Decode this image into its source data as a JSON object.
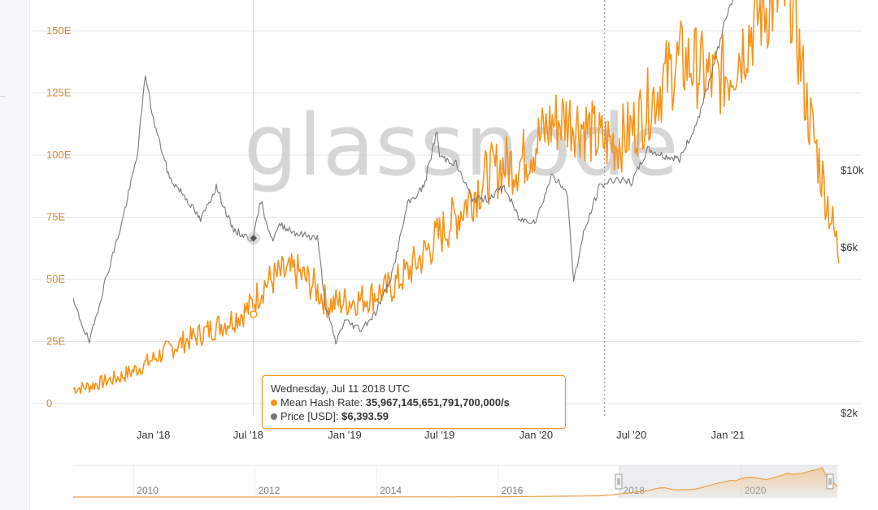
{
  "watermark": "glassnode",
  "colors": {
    "hash_rate": "#f7931a",
    "price": "#777777",
    "left_axis_text": "#d08a3a"
  },
  "chart_data": {
    "type": "line",
    "x_range": [
      "2017-08-01",
      "2021-08-01"
    ],
    "x_ticks": [
      {
        "date": "2018-01-01",
        "label": "Jan '18"
      },
      {
        "date": "2018-07-01",
        "label": "Jul '18"
      },
      {
        "date": "2019-01-01",
        "label": "Jan '19"
      },
      {
        "date": "2019-07-01",
        "label": "Jul '19"
      },
      {
        "date": "2020-01-01",
        "label": "Jan '20"
      },
      {
        "date": "2020-07-01",
        "label": "Jul '20"
      },
      {
        "date": "2021-01-01",
        "label": "Jan '21"
      }
    ],
    "y_left": {
      "label": "",
      "range": [
        0,
        165
      ],
      "ticks": [
        {
          "value": 0,
          "label": "0"
        },
        {
          "value": 25,
          "label": "25E"
        },
        {
          "value": 50,
          "label": "50E"
        },
        {
          "value": 75,
          "label": "75E"
        },
        {
          "value": 100,
          "label": "100E"
        },
        {
          "value": 125,
          "label": "125E"
        },
        {
          "value": 150,
          "label": "150E"
        }
      ]
    },
    "y_right": {
      "label": "",
      "scale": "log",
      "ticks": [
        {
          "value": 2000,
          "label": "$2k"
        },
        {
          "value": 6000,
          "label": "$6k"
        },
        {
          "value": 10000,
          "label": "$10k"
        }
      ]
    },
    "grid": true,
    "series": [
      {
        "name": "Mean Hash Rate",
        "axis": "left",
        "unit": "E/s",
        "points": [
          [
            "2017-08-01",
            6
          ],
          [
            "2017-09-01",
            7
          ],
          [
            "2017-10-01",
            9
          ],
          [
            "2017-11-01",
            11
          ],
          [
            "2017-12-01",
            14
          ],
          [
            "2018-01-01",
            18
          ],
          [
            "2018-02-01",
            22
          ],
          [
            "2018-03-01",
            25
          ],
          [
            "2018-04-01",
            28
          ],
          [
            "2018-05-01",
            31
          ],
          [
            "2018-06-01",
            34
          ],
          [
            "2018-07-01",
            38
          ],
          [
            "2018-08-01",
            48
          ],
          [
            "2018-09-01",
            52
          ],
          [
            "2018-10-01",
            53
          ],
          [
            "2018-11-01",
            48
          ],
          [
            "2018-12-01",
            40
          ],
          [
            "2019-01-01",
            41
          ],
          [
            "2019-02-01",
            42
          ],
          [
            "2019-03-01",
            44
          ],
          [
            "2019-04-01",
            47
          ],
          [
            "2019-05-01",
            53
          ],
          [
            "2019-06-01",
            60
          ],
          [
            "2019-07-01",
            68
          ],
          [
            "2019-08-01",
            75
          ],
          [
            "2019-09-01",
            84
          ],
          [
            "2019-10-01",
            92
          ],
          [
            "2019-11-01",
            96
          ],
          [
            "2019-12-01",
            97
          ],
          [
            "2020-01-01",
            105
          ],
          [
            "2020-02-01",
            113
          ],
          [
            "2020-03-01",
            115
          ],
          [
            "2020-04-01",
            112
          ],
          [
            "2020-05-01",
            106
          ],
          [
            "2020-06-01",
            105
          ],
          [
            "2020-07-01",
            110
          ],
          [
            "2020-08-01",
            120
          ],
          [
            "2020-09-01",
            130
          ],
          [
            "2020-10-01",
            138
          ],
          [
            "2020-11-01",
            136
          ],
          [
            "2020-12-01",
            130
          ],
          [
            "2021-01-01",
            133
          ],
          [
            "2021-02-01",
            145
          ],
          [
            "2021-03-01",
            157
          ],
          [
            "2021-04-01",
            163
          ],
          [
            "2021-05-01",
            165
          ],
          [
            "2021-06-01",
            120
          ],
          [
            "2021-07-01",
            90
          ],
          [
            "2021-08-01",
            60
          ]
        ]
      },
      {
        "name": "Price [USD]",
        "axis": "right",
        "unit": "USD",
        "points": [
          [
            "2017-08-01",
            4200
          ],
          [
            "2017-09-01",
            3200
          ],
          [
            "2017-10-01",
            4800
          ],
          [
            "2017-11-01",
            7000
          ],
          [
            "2017-12-01",
            11000
          ],
          [
            "2017-12-17",
            19000
          ],
          [
            "2018-01-01",
            14000
          ],
          [
            "2018-02-01",
            9500
          ],
          [
            "2018-03-01",
            8500
          ],
          [
            "2018-04-01",
            7200
          ],
          [
            "2018-05-01",
            9000
          ],
          [
            "2018-06-01",
            6800
          ],
          [
            "2018-07-01",
            6400
          ],
          [
            "2018-07-11",
            6393.59
          ],
          [
            "2018-07-25",
            8200
          ],
          [
            "2018-08-15",
            6300
          ],
          [
            "2018-09-01",
            7000
          ],
          [
            "2018-10-01",
            6600
          ],
          [
            "2018-11-10",
            6400
          ],
          [
            "2018-11-25",
            4100
          ],
          [
            "2018-12-15",
            3200
          ],
          [
            "2019-01-01",
            3700
          ],
          [
            "2019-02-01",
            3500
          ],
          [
            "2019-03-01",
            3900
          ],
          [
            "2019-04-01",
            5000
          ],
          [
            "2019-05-01",
            8000
          ],
          [
            "2019-06-01",
            9000
          ],
          [
            "2019-06-26",
            13000
          ],
          [
            "2019-07-01",
            11000
          ],
          [
            "2019-08-01",
            10500
          ],
          [
            "2019-09-01",
            8300
          ],
          [
            "2019-10-01",
            8300
          ],
          [
            "2019-11-01",
            9000
          ],
          [
            "2019-12-01",
            7200
          ],
          [
            "2020-01-01",
            7200
          ],
          [
            "2020-02-01",
            9800
          ],
          [
            "2020-03-01",
            8500
          ],
          [
            "2020-03-13",
            4800
          ],
          [
            "2020-04-01",
            6600
          ],
          [
            "2020-05-01",
            9000
          ],
          [
            "2020-06-01",
            9500
          ],
          [
            "2020-07-01",
            9200
          ],
          [
            "2020-08-01",
            11500
          ],
          [
            "2020-09-01",
            11000
          ],
          [
            "2020-10-01",
            10800
          ],
          [
            "2020-11-01",
            13500
          ],
          [
            "2020-12-01",
            19000
          ],
          [
            "2021-01-01",
            29000
          ],
          [
            "2021-02-01",
            34000
          ],
          [
            "2021-03-01",
            50000
          ],
          [
            "2021-04-01",
            58000
          ],
          [
            "2021-05-01",
            45000
          ]
        ]
      }
    ],
    "crosshair_date": "2018-07-11",
    "event_marker_date": "2020-05-11",
    "tooltip": {
      "date_label": "Wednesday, Jul 11 2018 UTC",
      "rows": [
        {
          "name": "Mean Hash Rate",
          "value": "35,967,145,651,791,700,000/s",
          "color": "#f7931a"
        },
        {
          "name": "Price [USD]",
          "value": "$6,393.59",
          "color": "#777777"
        }
      ]
    }
  },
  "navigator": {
    "ticks": [
      "2010",
      "2012",
      "2014",
      "2016",
      "2018",
      "2020"
    ],
    "selected_range": [
      "2017-08",
      "2021-08"
    ]
  }
}
